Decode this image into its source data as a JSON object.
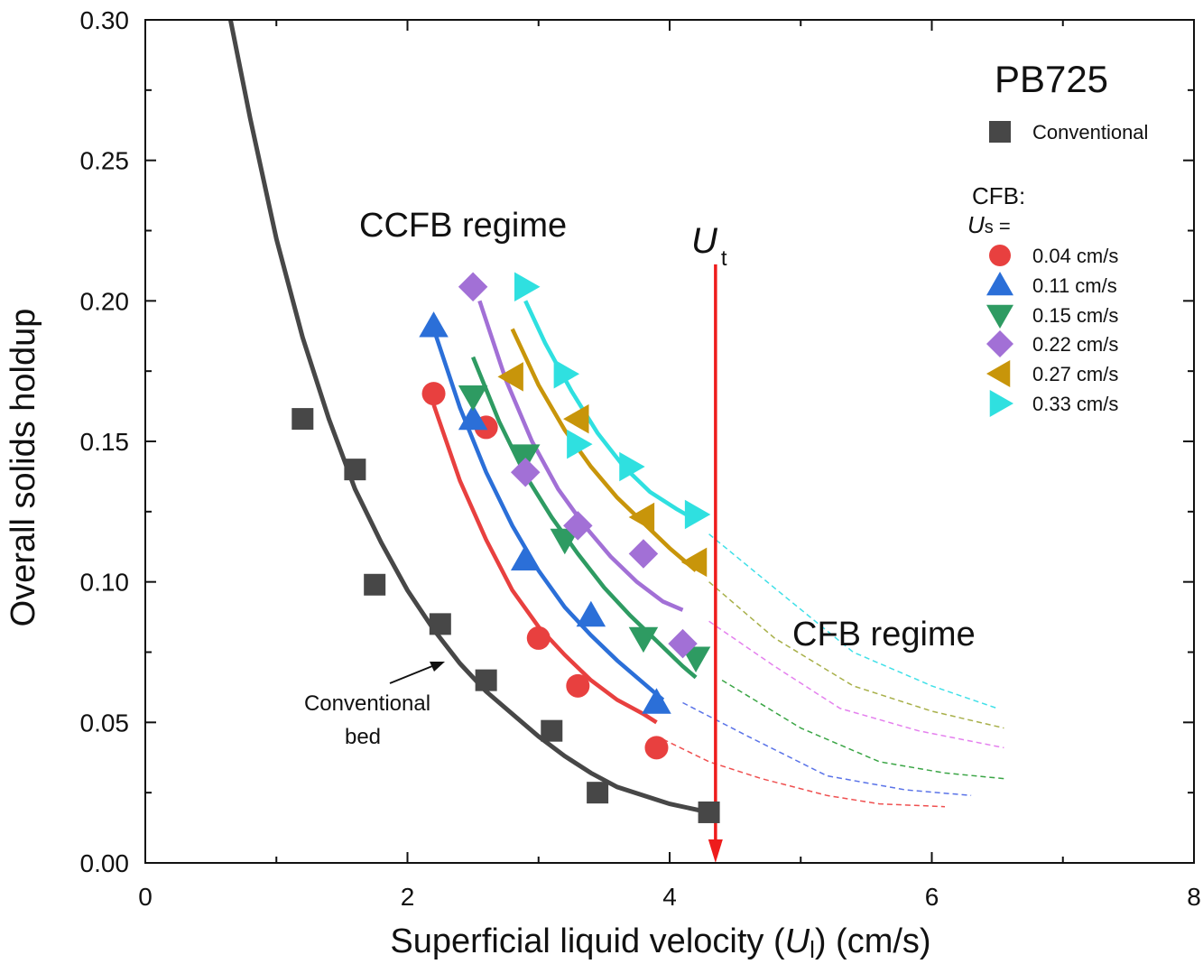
{
  "chart_data": {
    "type": "scatter",
    "title": "PB725",
    "xlabel": {
      "prefix": "Superficial liquid velocity (",
      "var": "U",
      "sub": "l",
      "suffix": ") (cm/s)"
    },
    "ylabel": "Overall solids holdup",
    "xlim": [
      0,
      8
    ],
    "ylim": [
      0,
      0.3
    ],
    "x_ticks": [
      "0",
      "2",
      "4",
      "6",
      "8"
    ],
    "y_ticks": [
      "0.00",
      "0.05",
      "0.10",
      "0.15",
      "0.20",
      "0.25",
      "0.30"
    ],
    "legend_cfb_title": "CFB:",
    "legend_us_var": "U",
    "legend_us_sub": "s",
    "legend_us_eq": " =",
    "ut_label": {
      "var": "U",
      "sub": "t"
    },
    "ut_x": 4.35,
    "annotations": {
      "ccfb": "CCFB regime",
      "cfb": "CFB regime",
      "conv_bed_line1": "Conventional",
      "conv_bed_line2": "bed"
    },
    "conventional": {
      "name": "Conventional",
      "color": "#474747",
      "marker": "square",
      "points": [
        [
          1.2,
          0.158
        ],
        [
          1.6,
          0.14
        ],
        [
          1.75,
          0.099
        ],
        [
          2.25,
          0.085
        ],
        [
          2.6,
          0.065
        ],
        [
          3.1,
          0.047
        ],
        [
          3.45,
          0.025
        ],
        [
          4.3,
          0.018
        ]
      ],
      "fit": [
        [
          0.65,
          0.3
        ],
        [
          0.8,
          0.265
        ],
        [
          1.0,
          0.222
        ],
        [
          1.2,
          0.187
        ],
        [
          1.4,
          0.158
        ],
        [
          1.6,
          0.133
        ],
        [
          1.8,
          0.114
        ],
        [
          2.0,
          0.097
        ],
        [
          2.2,
          0.083
        ],
        [
          2.4,
          0.071
        ],
        [
          2.6,
          0.061
        ],
        [
          2.8,
          0.053
        ],
        [
          3.0,
          0.045
        ],
        [
          3.2,
          0.038
        ],
        [
          3.4,
          0.032
        ],
        [
          3.6,
          0.027
        ],
        [
          3.8,
          0.024
        ],
        [
          4.0,
          0.021
        ],
        [
          4.3,
          0.018
        ]
      ]
    },
    "series": [
      {
        "name": "0.04 cm/s",
        "color": "#e8403f",
        "marker": "circle",
        "points": [
          [
            2.2,
            0.167
          ],
          [
            2.6,
            0.155
          ],
          [
            3.0,
            0.08
          ],
          [
            3.3,
            0.063
          ],
          [
            3.9,
            0.041
          ]
        ],
        "fit": [
          [
            2.2,
            0.163
          ],
          [
            2.4,
            0.136
          ],
          [
            2.6,
            0.115
          ],
          [
            2.8,
            0.097
          ],
          [
            3.0,
            0.084
          ],
          [
            3.2,
            0.074
          ],
          [
            3.4,
            0.065
          ],
          [
            3.6,
            0.058
          ],
          [
            3.8,
            0.053
          ],
          [
            3.9,
            0.05
          ]
        ],
        "ext_color": "#ef5050",
        "ext": [
          [
            3.95,
            0.044
          ],
          [
            4.3,
            0.036
          ],
          [
            4.7,
            0.03
          ],
          [
            5.2,
            0.024
          ],
          [
            5.6,
            0.021
          ],
          [
            6.1,
            0.02
          ]
        ]
      },
      {
        "name": "0.11 cm/s",
        "color": "#2b6fd8",
        "marker": "triangle-up",
        "points": [
          [
            2.2,
            0.191
          ],
          [
            2.5,
            0.158
          ],
          [
            2.9,
            0.108
          ],
          [
            3.4,
            0.088
          ],
          [
            3.9,
            0.057
          ]
        ],
        "fit": [
          [
            2.2,
            0.19
          ],
          [
            2.4,
            0.162
          ],
          [
            2.6,
            0.139
          ],
          [
            2.8,
            0.12
          ],
          [
            3.0,
            0.104
          ],
          [
            3.2,
            0.091
          ],
          [
            3.4,
            0.081
          ],
          [
            3.6,
            0.072
          ],
          [
            3.8,
            0.064
          ],
          [
            3.95,
            0.058
          ]
        ],
        "ext_color": "#5a73e8",
        "ext": [
          [
            4.1,
            0.057
          ],
          [
            4.6,
            0.045
          ],
          [
            5.2,
            0.031
          ],
          [
            5.8,
            0.026
          ],
          [
            6.3,
            0.024
          ]
        ]
      },
      {
        "name": "0.15 cm/s",
        "color": "#2e9b62",
        "marker": "triangle-down",
        "points": [
          [
            2.5,
            0.166
          ],
          [
            2.9,
            0.145
          ],
          [
            3.2,
            0.115
          ],
          [
            3.8,
            0.08
          ],
          [
            4.2,
            0.073
          ]
        ],
        "fit": [
          [
            2.5,
            0.18
          ],
          [
            2.7,
            0.157
          ],
          [
            2.9,
            0.138
          ],
          [
            3.1,
            0.123
          ],
          [
            3.3,
            0.11
          ],
          [
            3.5,
            0.098
          ],
          [
            3.7,
            0.088
          ],
          [
            3.9,
            0.079
          ],
          [
            4.1,
            0.07
          ],
          [
            4.2,
            0.066
          ]
        ],
        "ext_color": "#3aa545",
        "ext": [
          [
            4.4,
            0.065
          ],
          [
            5.0,
            0.048
          ],
          [
            5.6,
            0.036
          ],
          [
            6.1,
            0.032
          ],
          [
            6.55,
            0.03
          ]
        ]
      },
      {
        "name": "0.22 cm/s",
        "color": "#a270d6",
        "marker": "diamond",
        "points": [
          [
            2.5,
            0.205
          ],
          [
            2.9,
            0.139
          ],
          [
            3.3,
            0.12
          ],
          [
            3.8,
            0.11
          ],
          [
            4.1,
            0.078
          ]
        ],
        "fit": [
          [
            2.55,
            0.2
          ],
          [
            2.75,
            0.172
          ],
          [
            2.95,
            0.15
          ],
          [
            3.15,
            0.133
          ],
          [
            3.35,
            0.12
          ],
          [
            3.55,
            0.109
          ],
          [
            3.75,
            0.1
          ],
          [
            3.95,
            0.093
          ],
          [
            4.1,
            0.09
          ]
        ],
        "ext_color": "#e480ee",
        "ext": [
          [
            4.3,
            0.086
          ],
          [
            4.8,
            0.07
          ],
          [
            5.3,
            0.055
          ],
          [
            5.9,
            0.047
          ],
          [
            6.55,
            0.041
          ]
        ]
      },
      {
        "name": "0.27 cm/s",
        "color": "#c8950a",
        "marker": "triangle-left",
        "points": [
          [
            2.8,
            0.173
          ],
          [
            3.3,
            0.158
          ],
          [
            3.8,
            0.123
          ],
          [
            4.2,
            0.107
          ]
        ],
        "fit": [
          [
            2.8,
            0.19
          ],
          [
            3.0,
            0.17
          ],
          [
            3.2,
            0.154
          ],
          [
            3.4,
            0.141
          ],
          [
            3.6,
            0.13
          ],
          [
            3.8,
            0.121
          ],
          [
            4.0,
            0.112
          ],
          [
            4.2,
            0.104
          ]
        ],
        "ext_color": "#a8b04a",
        "ext": [
          [
            4.3,
            0.1
          ],
          [
            4.8,
            0.08
          ],
          [
            5.4,
            0.063
          ],
          [
            6.0,
            0.054
          ],
          [
            6.55,
            0.048
          ]
        ]
      },
      {
        "name": "0.33 cm/s",
        "color": "#2fe0e0",
        "marker": "triangle-right",
        "points": [
          [
            2.9,
            0.205
          ],
          [
            3.2,
            0.174
          ],
          [
            3.3,
            0.149
          ],
          [
            3.7,
            0.141
          ],
          [
            4.2,
            0.124
          ]
        ],
        "fit": [
          [
            2.9,
            0.2
          ],
          [
            3.05,
            0.185
          ],
          [
            3.25,
            0.168
          ],
          [
            3.45,
            0.153
          ],
          [
            3.65,
            0.141
          ],
          [
            3.85,
            0.132
          ],
          [
            4.05,
            0.126
          ],
          [
            4.2,
            0.122
          ]
        ],
        "ext_color": "#40e0e8",
        "ext": [
          [
            4.3,
            0.117
          ],
          [
            4.9,
            0.094
          ],
          [
            5.4,
            0.075
          ],
          [
            6.0,
            0.063
          ],
          [
            6.5,
            0.055
          ]
        ]
      }
    ]
  }
}
